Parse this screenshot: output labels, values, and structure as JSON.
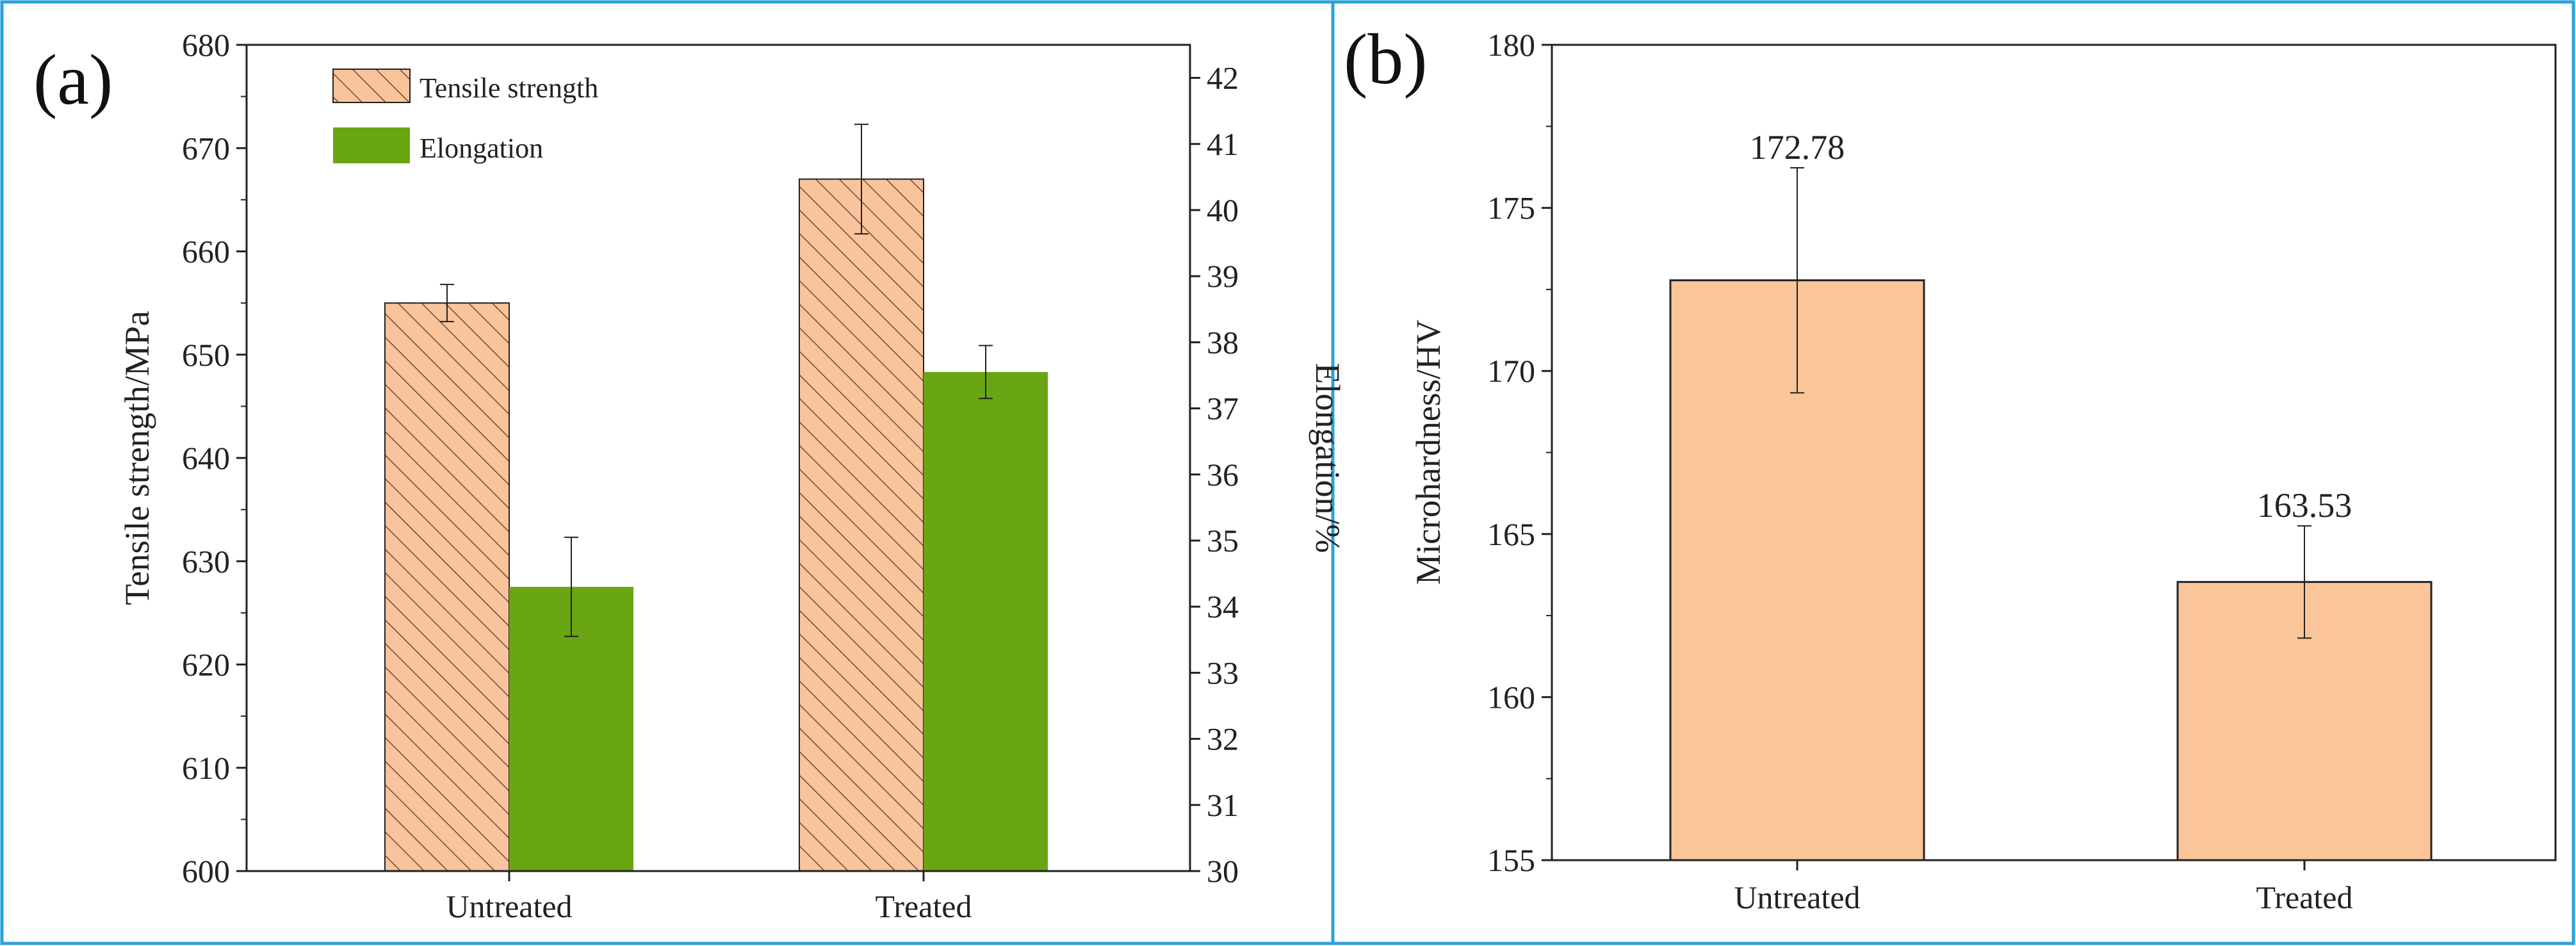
{
  "colors": {
    "panel_border": "#29a3dc",
    "tensile_fill": "#f9c49c",
    "elongation_fill": "#6aa513",
    "hardness_fill": "#fbc59a",
    "hatch": "#6b4a35",
    "axis": "#222222"
  },
  "chart_data": [
    {
      "type": "bar",
      "panel_label": "(a)",
      "categories": [
        "Untreated",
        "Treated"
      ],
      "series": [
        {
          "name": "Tensile strength",
          "axis": "left",
          "pattern": "hatched",
          "values": [
            655,
            667
          ],
          "errors": [
            1.8,
            5.3
          ]
        },
        {
          "name": "Elongation",
          "axis": "right",
          "pattern": "solid",
          "values": [
            34.3,
            37.55
          ],
          "errors": [
            0.75,
            0.4
          ]
        }
      ],
      "ylabel": "Tensile strength/MPa",
      "ylim": [
        600,
        680
      ],
      "yticks": [
        600,
        610,
        620,
        630,
        640,
        650,
        660,
        670,
        680
      ],
      "y2label": "Elongation/%",
      "y2lim": [
        30,
        42.5
      ],
      "y2ticks": [
        30,
        31,
        32,
        33,
        34,
        35,
        36,
        37,
        38,
        39,
        40,
        41,
        42
      ],
      "legend": {
        "position": "top-left",
        "entries": [
          "Tensile strength",
          "Elongation"
        ]
      },
      "grid": false
    },
    {
      "type": "bar",
      "panel_label": "(b)",
      "categories": [
        "Untreated",
        "Treated"
      ],
      "values": [
        172.78,
        163.53
      ],
      "errors": [
        3.45,
        1.72
      ],
      "data_labels": [
        "172.78",
        "163.53"
      ],
      "ylabel": "Microhardness/HV",
      "ylim": [
        155,
        180
      ],
      "yticks": [
        155,
        160,
        165,
        170,
        175,
        180
      ],
      "grid": false
    }
  ]
}
